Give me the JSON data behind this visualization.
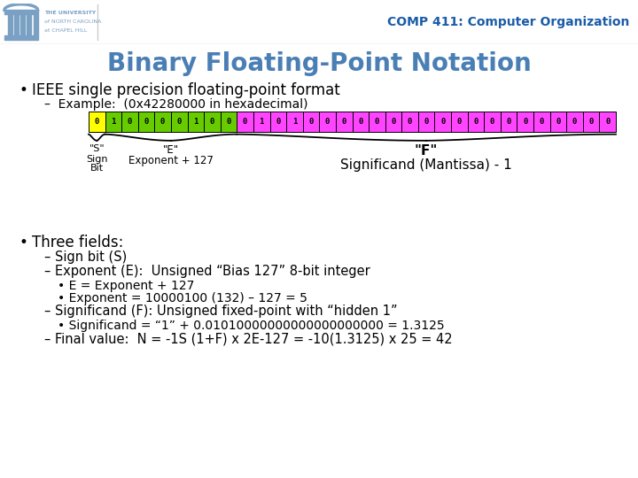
{
  "title": "Binary Floating-Point Notation",
  "header_text": "COMP 411: Computer Organization",
  "header_subtext": [
    "THE UNIVERSITY",
    "of NORTH CAROLINA",
    "at CHAPEL HILL"
  ],
  "slide_bg": "#ffffff",
  "footer_bg": "#9db8ce",
  "bits": "01000010001010000000000000000000",
  "bit_colors_yellow": [
    0
  ],
  "bit_colors_green": [
    1,
    2,
    3,
    4,
    5,
    6,
    7,
    8
  ],
  "bit_colors_magenta": [
    9,
    10,
    11,
    12,
    13,
    14,
    15,
    16,
    17,
    18,
    19,
    20,
    21,
    22,
    23,
    24,
    25,
    26,
    27,
    28,
    29,
    30,
    31
  ],
  "yellow_color": "#ffff00",
  "green_color": "#66cc00",
  "magenta_color": "#ff44ff",
  "bit_border_color": "#000000",
  "label_s": "\"S\"",
  "label_e": "\"E\"",
  "label_e2": "Exponent + 127",
  "label_f": "\"F\"",
  "label_f2": "Significand (Mantissa) - 1",
  "bullet1": "IEEE single precision floating-point format",
  "sub_bullet1": "–  Example:  (0x42280000 in hexadecimal)",
  "bullet2": "Three fields:",
  "sub_bullets2": [
    "– Sign bit (S)",
    "– Exponent (E):  Unsigned “Bias 127” 8-bit integer",
    "    • E = Exponent + 127",
    "    • Exponent = 10000100 (132) – 127 = 5",
    "– Significand (F): Unsigned fixed-point with “hidden 1”",
    "    • Significand = “1” + 0.01010000000000000000000 = 1.3125",
    "– Final value:  N = -1S (1+F) x 2E-127 = -10(1.3125) x 25 = 42"
  ],
  "title_color": "#4a7fb5",
  "comp_color": "#1a5ca8",
  "text_color": "#1a1a1a",
  "header_line_color": "#cccccc",
  "unc_color": "#7aa0c4"
}
